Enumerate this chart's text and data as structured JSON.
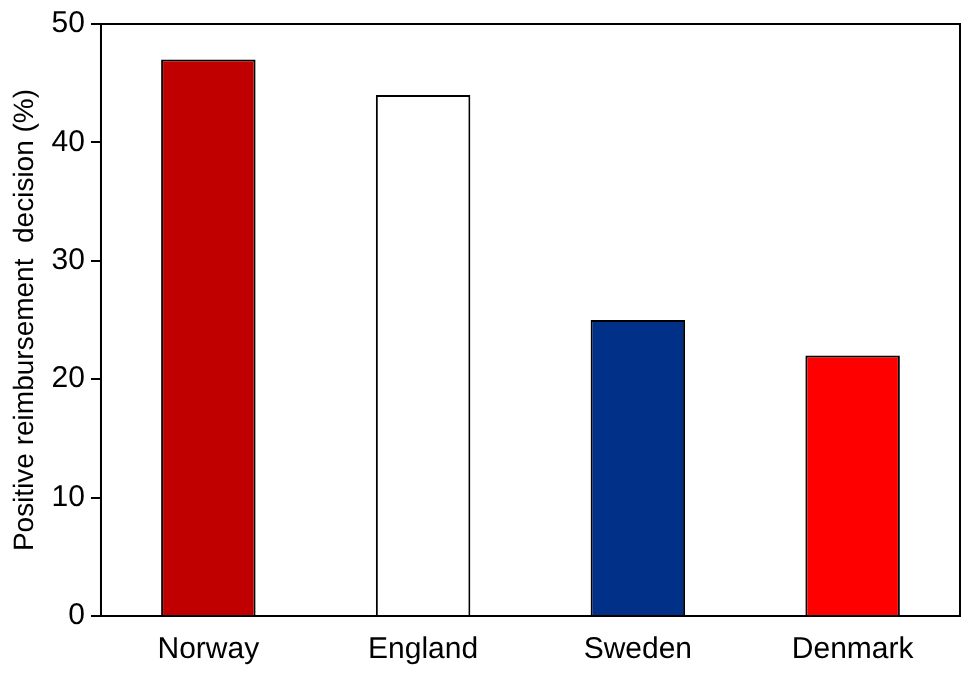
{
  "chart_data": {
    "type": "bar",
    "ylabel": "Positive reimbursement  decision (%)",
    "categories": [
      "Norway",
      "England",
      "Sweden",
      "Denmark"
    ],
    "values": [
      47,
      44,
      25,
      22
    ],
    "colors": [
      "#c00000",
      "#ffffff",
      "#003087",
      "#ff0000"
    ],
    "ylim": [
      0,
      50
    ],
    "yticks": [
      0,
      10,
      20,
      30,
      40,
      50
    ],
    "grid": false,
    "legend": false
  }
}
